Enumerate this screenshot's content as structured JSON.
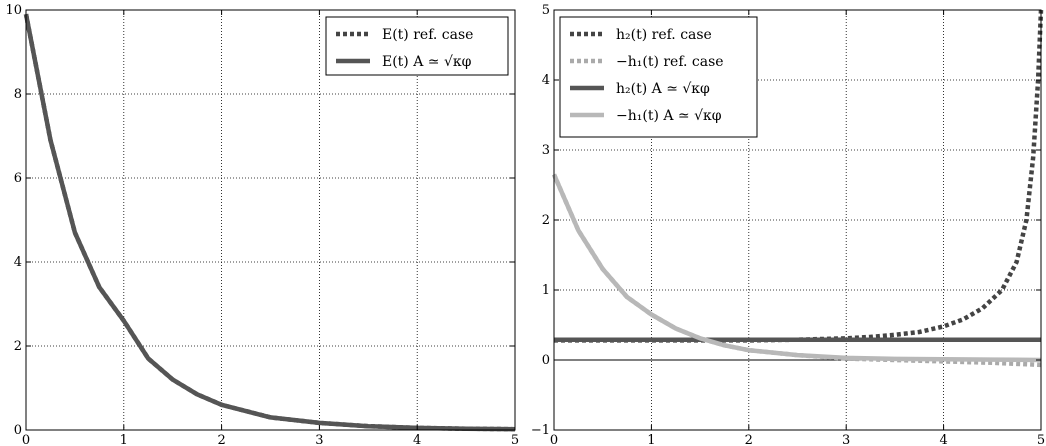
{
  "chart_data": [
    {
      "type": "line",
      "title": "",
      "xlabel": "",
      "ylabel": "",
      "xlim": [
        0,
        5
      ],
      "ylim": [
        0,
        10
      ],
      "xticks": [
        0,
        1,
        2,
        3,
        4,
        5
      ],
      "yticks": [
        0,
        2,
        4,
        6,
        8,
        10
      ],
      "grid": true,
      "legend_position": "top-right",
      "series": [
        {
          "name": "E(t) ref. case",
          "legend_label": "E(t) ref. case",
          "color": "#444444",
          "style": "dotted",
          "x": [
            0,
            0.25,
            0.5,
            0.75,
            1,
            1.25,
            1.5,
            1.75,
            2,
            2.5,
            3,
            3.5,
            4,
            4.5,
            5
          ],
          "y": [
            9.9,
            6.9,
            4.7,
            3.4,
            2.6,
            1.7,
            1.2,
            0.85,
            0.6,
            0.3,
            0.17,
            0.09,
            0.05,
            0.03,
            0.02
          ]
        },
        {
          "name": "E(t) A ≃ √κφ",
          "legend_label": "E(t) A ≃ √κφ",
          "color": "#555555",
          "style": "solid",
          "x": [
            0,
            0.25,
            0.5,
            0.75,
            1,
            1.25,
            1.5,
            1.75,
            2,
            2.5,
            3,
            3.5,
            4,
            4.5,
            5
          ],
          "y": [
            9.9,
            6.9,
            4.7,
            3.4,
            2.6,
            1.7,
            1.2,
            0.85,
            0.6,
            0.3,
            0.17,
            0.09,
            0.05,
            0.03,
            0.02
          ]
        }
      ]
    },
    {
      "type": "line",
      "title": "",
      "xlabel": "",
      "ylabel": "",
      "xlim": [
        0,
        5
      ],
      "ylim": [
        -1,
        5
      ],
      "xticks": [
        0,
        1,
        2,
        3,
        4,
        5
      ],
      "yticks": [
        -1,
        0,
        1,
        2,
        3,
        4,
        5
      ],
      "grid": true,
      "zero_line": true,
      "legend_position": "top-left",
      "series": [
        {
          "name": "h2(t) ref. case",
          "legend_label": "h₂(t) ref. case",
          "color": "#444444",
          "style": "dotted",
          "x": [
            0,
            0.5,
            1,
            1.5,
            2,
            2.5,
            3,
            3.25,
            3.5,
            3.75,
            4,
            4.2,
            4.4,
            4.6,
            4.75,
            4.85,
            4.92,
            4.97,
            5
          ],
          "y": [
            0.28,
            0.28,
            0.28,
            0.28,
            0.28,
            0.29,
            0.31,
            0.33,
            0.36,
            0.4,
            0.48,
            0.58,
            0.74,
            1.0,
            1.4,
            2.0,
            2.9,
            4.0,
            5.0
          ]
        },
        {
          "name": "-h1(t) ref. case",
          "legend_label": "−h₁(t) ref. case",
          "color": "#aaaaaa",
          "style": "dotted",
          "x": [
            0,
            0.25,
            0.5,
            0.75,
            1,
            1.25,
            1.5,
            1.75,
            2,
            2.5,
            3,
            3.5,
            4,
            4.5,
            5
          ],
          "y": [
            2.65,
            1.85,
            1.3,
            0.9,
            0.65,
            0.45,
            0.31,
            0.21,
            0.14,
            0.07,
            0.02,
            0.0,
            -0.02,
            -0.04,
            -0.07
          ]
        },
        {
          "name": "h2(t) A ≃ √κφ",
          "legend_label": "h₂(t) A ≃ √κφ",
          "color": "#555555",
          "style": "solid",
          "x": [
            0,
            1,
            2,
            3,
            4,
            5
          ],
          "y": [
            0.29,
            0.29,
            0.29,
            0.29,
            0.29,
            0.29
          ]
        },
        {
          "name": "-h1(t) A ≃ √κφ",
          "legend_label": "−h₁(t) A ≃ √κφ",
          "color": "#b8b8b8",
          "style": "solid",
          "x": [
            0,
            0.25,
            0.5,
            0.75,
            1,
            1.25,
            1.5,
            1.75,
            2,
            2.5,
            3,
            3.5,
            4,
            4.5,
            5
          ],
          "y": [
            2.65,
            1.85,
            1.3,
            0.9,
            0.65,
            0.45,
            0.31,
            0.21,
            0.14,
            0.07,
            0.03,
            0.015,
            0.01,
            0.005,
            0.0
          ]
        }
      ]
    }
  ]
}
